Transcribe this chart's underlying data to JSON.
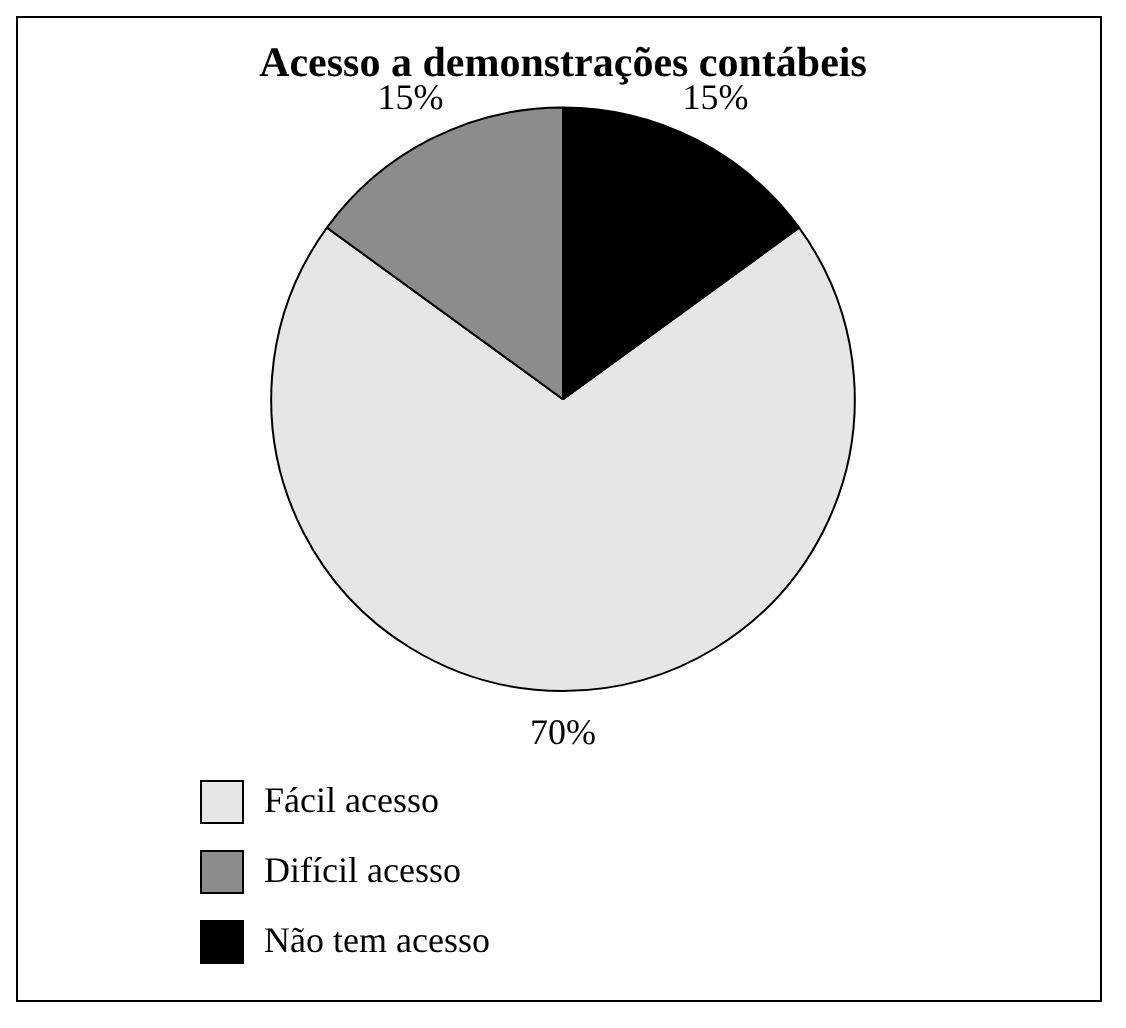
{
  "chart_data": {
    "type": "pie",
    "title": "Acesso a demonstrações contábeis",
    "categories": [
      "Fácil acesso",
      "Difícil acesso",
      "Não tem acesso"
    ],
    "values": [
      70,
      15,
      15
    ],
    "colors": [
      "#e6e6e6",
      "#8c8c8c",
      "#000000"
    ],
    "value_labels": [
      "70%",
      "15%",
      "15%"
    ],
    "legend": "bottom left"
  }
}
